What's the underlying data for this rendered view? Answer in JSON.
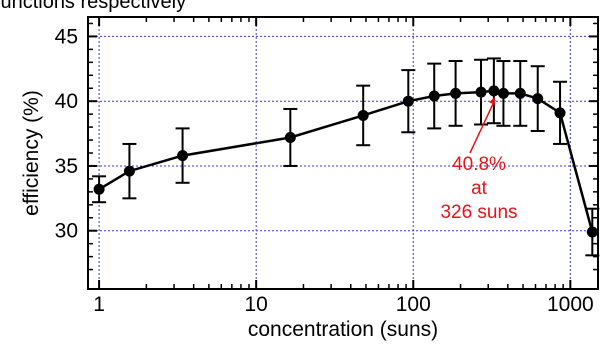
{
  "top_fragment": "junctions respectively",
  "chart_data": {
    "type": "scatter",
    "title": "",
    "xlabel": "concentration (suns)",
    "ylabel": "efficiency (%)",
    "xscale": "log",
    "xlim": [
      0.85,
      1500
    ],
    "ylim": [
      25.5,
      46.5
    ],
    "xticks": [
      1,
      10,
      100,
      1000
    ],
    "xtick_labels": [
      "1",
      "10",
      "100",
      "1000"
    ],
    "yticks": [
      30,
      35,
      40,
      45
    ],
    "ytick_labels": [
      "30",
      "35",
      "40",
      "45"
    ],
    "grid": true,
    "grid_color": "#3a3ad8",
    "line_color": "#000000",
    "series": [
      {
        "connected": true,
        "x": [
          1,
          1.56,
          3.4,
          16.5,
          48,
          93,
          136,
          186,
          270,
          326,
          375,
          480,
          620,
          860,
          1380
        ],
        "y": [
          33.2,
          34.6,
          35.8,
          37.2,
          38.9,
          40.0,
          40.4,
          40.6,
          40.7,
          40.8,
          40.6,
          40.6,
          40.2,
          39.1,
          29.9
        ],
        "error": [
          1.0,
          2.1,
          2.1,
          2.2,
          2.3,
          2.4,
          2.5,
          2.5,
          2.5,
          2.5,
          2.5,
          2.5,
          2.5,
          2.4,
          1.8
        ]
      }
    ],
    "annotation": {
      "lines": [
        "40.8%",
        "at",
        "326 suns"
      ],
      "color": "#e8121a",
      "points_to": {
        "x": 326,
        "y": 40.8
      }
    }
  }
}
